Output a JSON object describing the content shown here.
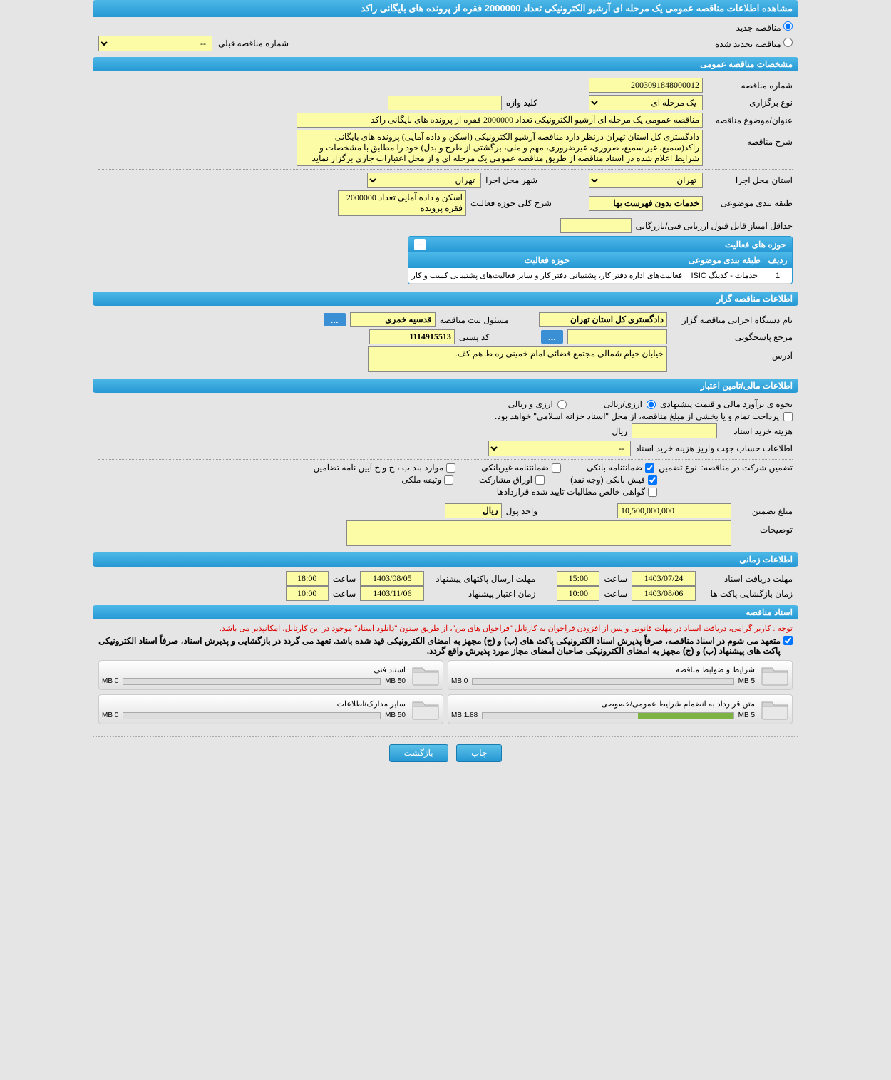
{
  "page_title": "مشاهده اطلاعات مناقصه عمومی یک مرحله ای آرشیو الکترونیکی تعداد 2000000 فقره از پرونده های بایگانی راکد",
  "radio": {
    "new_label": "مناقصه جدید",
    "renewed_label": "مناقصه تجدید شده",
    "prev_label": "شماره مناقصه قبلی",
    "prev_value": "--"
  },
  "sections": {
    "general": "مشخصات مناقصه عمومی",
    "organizer": "اطلاعات مناقصه گزار",
    "financial": "اطلاعات مالی/تامین اعتبار",
    "timing": "اطلاعات زمانی",
    "documents": "اسناد مناقصه"
  },
  "general": {
    "tender_no_label": "شماره مناقصه",
    "tender_no": "2003091848000012",
    "type_label": "نوع برگزاری",
    "type_value": "یک مرحله ای",
    "keyword_label": "کلید واژه",
    "keyword_value": "",
    "subject_label": "عنوان/موضوع مناقصه",
    "subject_value": "مناقصه عمومی یک مرحله ای آرشیو الکترونیکی تعداد 2000000 فقره از پرونده های بایگانی راکد",
    "desc_label": "شرح مناقصه",
    "desc_value": "دادگستری کل استان تهران درنظر دارد مناقصه آرشیو الکترونیکی (اسکن و داده آمایی) پرونده های بایگانی راکد(سمیع، غیر سمیع، ضروری، غیرضروری، مهم و ملی، برگشتی از طرح و بدل) خود را مطابق با مشخصات و شرایط اعلام شده در اسناد مناقصه از طریق مناقصه عمومی یک مرحله ای و از محل اعتبارات جاری برگزار نماید",
    "province_label": "استان محل اجرا",
    "province_value": "تهران",
    "city_label": "شهر محل اجرا",
    "city_value": "تهران",
    "category_label": "طبقه بندی موضوعی",
    "category_value": "خدمات بدون فهرست بها",
    "scope_label": "شرح کلی حوزه فعالیت",
    "scope_value": "اسکن و داده آمایی تعداد 2000000 فقره پرونده",
    "min_score_label": "حداقل امتیاز قابل قبول ارزیابی فنی/بازرگانی",
    "min_score_value": ""
  },
  "activity": {
    "title": "حوزه های فعالیت",
    "col_row": "ردیف",
    "col_category": "طبقه بندی موضوعی",
    "col_scope": "حوزه فعالیت",
    "row_num": "1",
    "row_category": "خدمات - کدینگ ISIC",
    "row_scope": "فعالیت‌های اداره دفتر کار، پشتیبانی دفتر کار و سایر فعالیت‌های پشتیبانی کسب و کار"
  },
  "organizer": {
    "name_label": "نام دستگاه اجرایی مناقصه گزار",
    "name_value": "دادگستری کل استان تهران",
    "reg_resp_label": "مسئول ثبت مناقصه",
    "reg_resp_value": "قدسیه خمری",
    "resp_ref_label": "مرجع پاسخگویی",
    "postal_label": "کد پستی",
    "postal_value": "1114915513",
    "address_label": "آدرس",
    "address_value": "خیابان خیام شمالی مجتمع قضائی امام خمینی ره ط هم کف."
  },
  "financial": {
    "estimate_label": "نحوه ی برآورد مالی و قیمت پیشنهادی",
    "rial_label": "ارزی/ریالی",
    "currency_label": "ارزی و ریالی",
    "treasury_checkbox_label": "پرداخت تمام و یا بخشی از مبلغ مناقصه، از محل \"اسناد خزانه اسلامی\" خواهد بود.",
    "doc_fee_label": "هزینه خرید اسناد",
    "doc_fee_value": "",
    "rial_unit": "ریال",
    "account_label": "اطلاعات حساب جهت واریز هزینه خرید اسناد",
    "account_value": "--",
    "guarantee_label": "تضمین شرکت در مناقصه:",
    "guarantee_type_label": "نوع تضمین",
    "cb_bank_guarantee": "ضمانتنامه بانکی",
    "cb_nonbank_guarantee": "ضمانتنامه غیربانکی",
    "cb_clauses": "موارد بند ب ، ج و خ آیین نامه تضامین",
    "cb_cash": "فیش بانکی (وجه نقد)",
    "cb_securities": "اوراق مشارکت",
    "cb_property": "وثیقه ملکی",
    "cb_net_claims": "گواهی خالص مطالبات تایید شده قراردادها",
    "amount_label": "مبلغ تضمین",
    "amount_value": "10,500,000,000",
    "unit_label": "واحد پول",
    "unit_value": "ریال",
    "notes_label": "توضیحات",
    "notes_value": ""
  },
  "timing": {
    "receive_deadline_label": "مهلت دریافت اسناد",
    "receive_date": "1403/07/24",
    "clock_label": "ساعت",
    "receive_time": "15:00",
    "send_deadline_label": "مهلت ارسال پاکتهای پیشنهاد",
    "send_date": "1403/08/05",
    "send_time": "18:00",
    "open_label": "زمان بازگشایی پاکت ها",
    "open_date": "1403/08/06",
    "open_time": "10:00",
    "validity_label": "زمان اعتبار پیشنهاد",
    "validity_date": "1403/11/06",
    "validity_time": "10:00"
  },
  "documents": {
    "warning": "توجه : کاربر گرامی، دریافت اسناد در مهلت قانونی و پس از افزودن فراخوان به کارتابل \"فراخوان های من\"، از طریق ستون \"دانلود اسناد\" موجود در این کارتابل، امکانپذیر می باشد.",
    "commit_text": "متعهد می شوم در اسناد مناقصه، صرفاً پذیرش اسناد الکترونیکی پاکت های (ب) و (ج) مجهز به امضای الکترونیکی قید شده باشد. تعهد می گردد در بازگشایی و پذیرش اسناد، صرفاً اسناد الکترونیکی پاکت های پیشنهاد (ب) و (ج) مجهز به امضای الکترونیکی صاحبان امضای مجاز مورد پذیرش واقع گردد.",
    "cards": [
      {
        "title": "شرایط و ضوابط مناقصه",
        "used": "0 MB",
        "total": "5 MB",
        "pct": 0
      },
      {
        "title": "اسناد فنی",
        "used": "0 MB",
        "total": "50 MB",
        "pct": 0
      },
      {
        "title": "متن قرارداد به انضمام شرایط عمومی/خصوصی",
        "used": "1.88 MB",
        "total": "5 MB",
        "pct": 38
      },
      {
        "title": "سایر مدارک/اطلاعات",
        "used": "0 MB",
        "total": "50 MB",
        "pct": 0
      }
    ]
  },
  "buttons": {
    "print": "چاپ",
    "back": "بازگشت"
  }
}
